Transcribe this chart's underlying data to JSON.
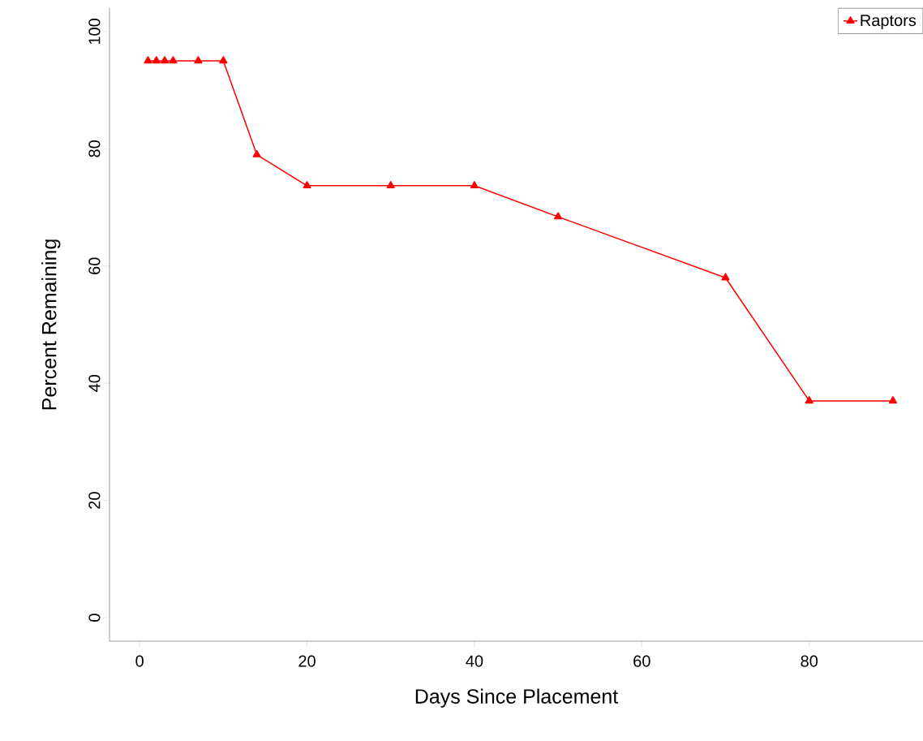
{
  "chart_data": {
    "type": "line",
    "xlabel": "Days Since Placement",
    "ylabel": "Percent Remaining",
    "x": [
      1,
      2,
      3,
      4,
      7,
      10,
      14,
      20,
      30,
      40,
      50,
      70,
      80,
      90
    ],
    "series": [
      {
        "name": "Raptors",
        "color": "#ff0000",
        "values": [
          95,
          95,
          95,
          95,
          95,
          95,
          79,
          73.7,
          73.7,
          73.7,
          68.4,
          58,
          37,
          37
        ]
      }
    ],
    "xlim": [
      -3.6,
      93.6
    ],
    "ylim": [
      -4,
      104
    ],
    "xticks": [
      0,
      20,
      40,
      60,
      80
    ],
    "yticks": [
      0,
      20,
      40,
      60,
      80,
      100
    ],
    "legend": "top right",
    "marker": "triangle",
    "line_style": "solid",
    "grid": false
  }
}
